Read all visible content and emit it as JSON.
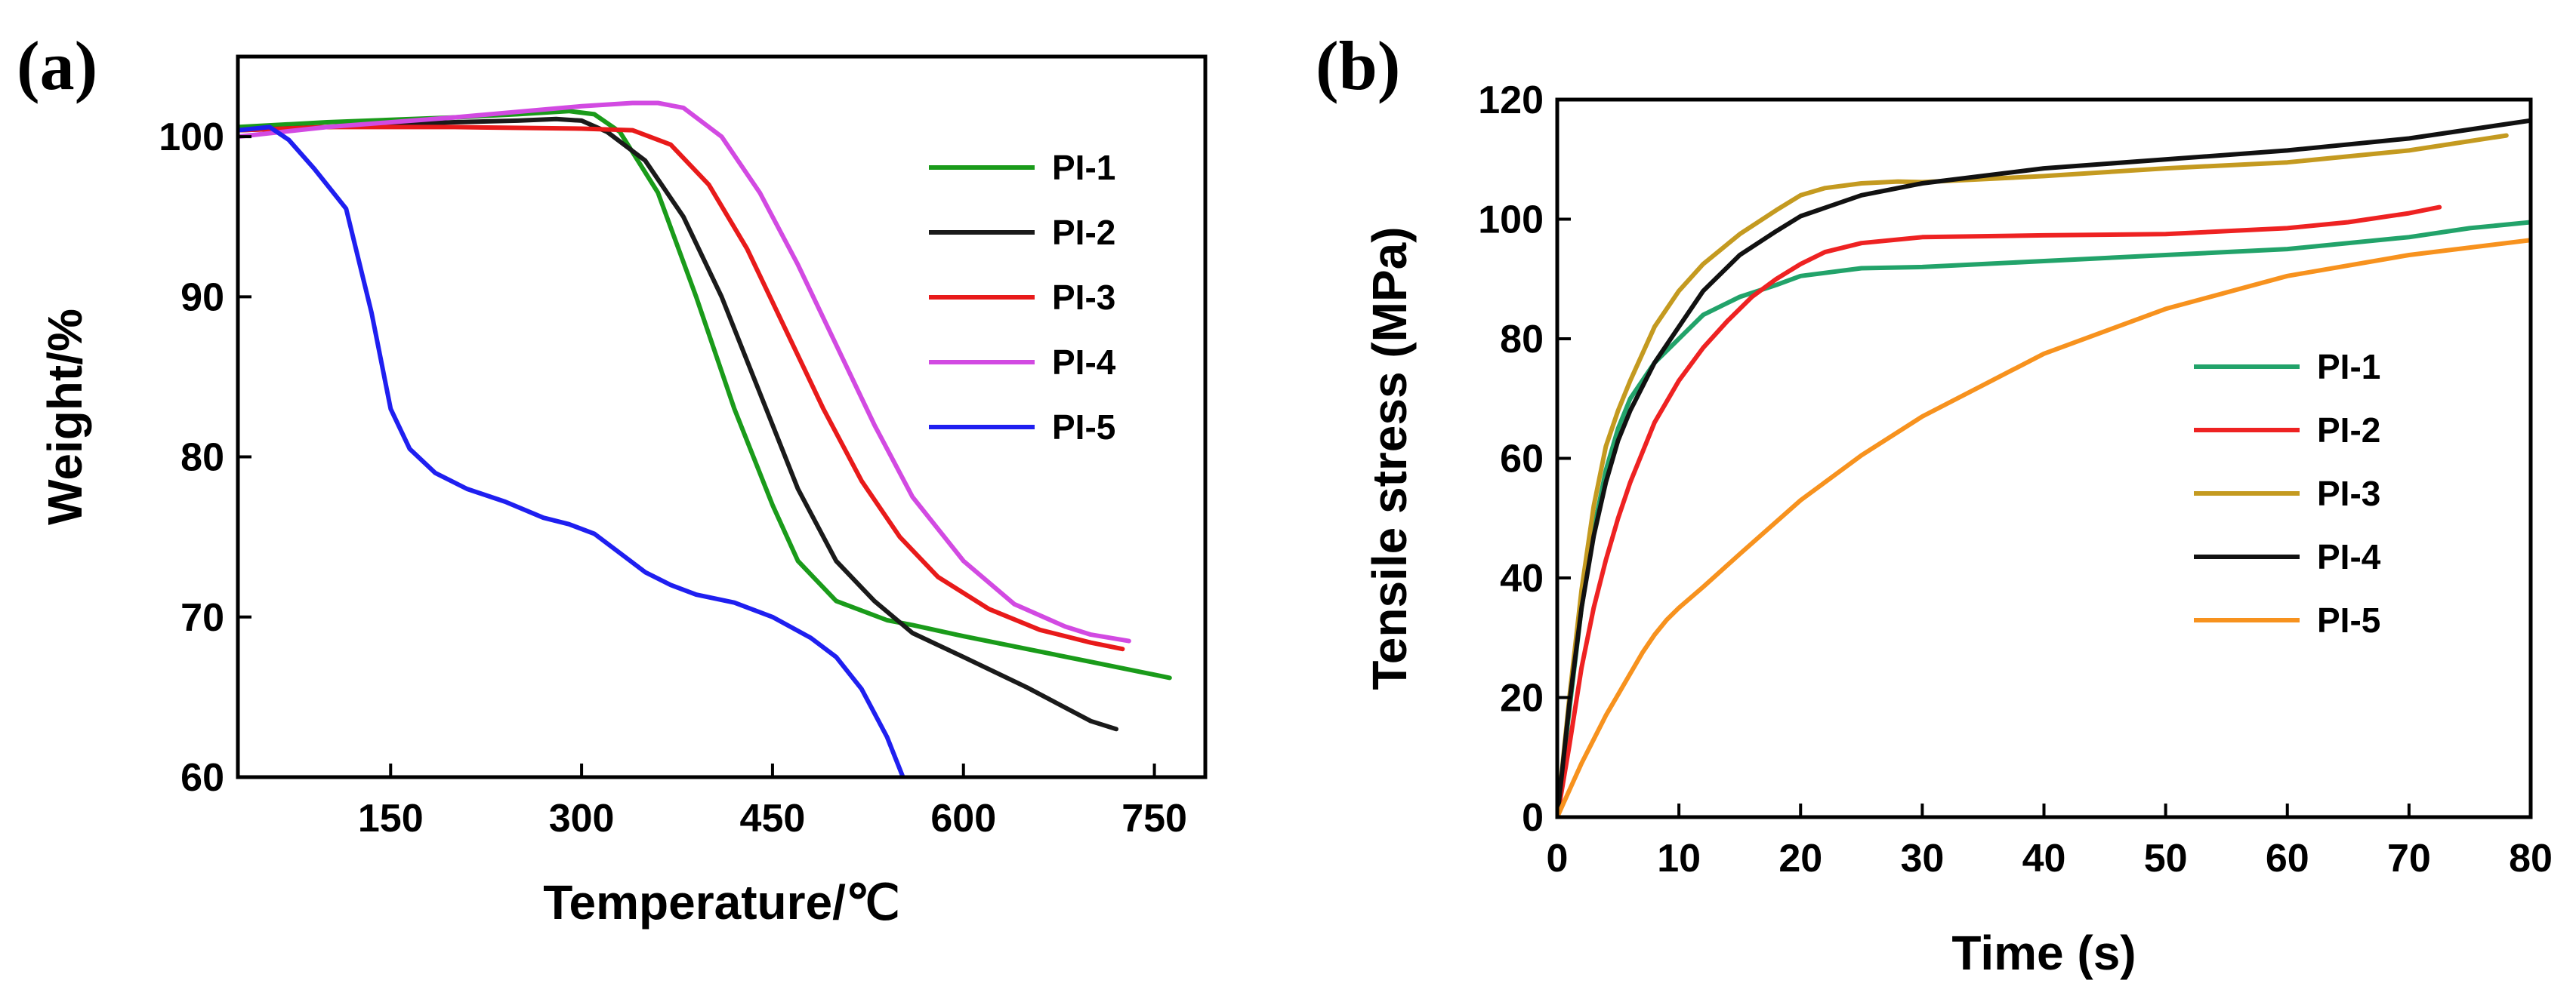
{
  "chart_data": [
    {
      "panel_label": "(a)",
      "type": "line",
      "xlabel": "Temperature/℃",
      "ylabel": "Weight/%",
      "xlim": [
        30,
        790
      ],
      "ylim": [
        60,
        105
      ],
      "xticks": [
        150,
        300,
        450,
        600,
        750
      ],
      "yticks": [
        60,
        70,
        80,
        90,
        100
      ],
      "legend_position": "right",
      "series": [
        {
          "name": "PI-1",
          "color": "#1a9b1a",
          "x": [
            30,
            100,
            200,
            250,
            290,
            310,
            330,
            360,
            390,
            420,
            450,
            470,
            500,
            540,
            560,
            600,
            650,
            700,
            762
          ],
          "y": [
            100.6,
            100.9,
            101.2,
            101.4,
            101.6,
            101.4,
            100.3,
            96.5,
            90,
            83,
            77,
            73.5,
            71,
            69.8,
            69.5,
            68.8,
            68,
            67.2,
            66.2
          ]
        },
        {
          "name": "PI-2",
          "color": "#1a1a1a",
          "x": [
            30,
            100,
            200,
            250,
            280,
            300,
            320,
            350,
            380,
            410,
            440,
            470,
            500,
            530,
            560,
            600,
            650,
            700,
            720
          ],
          "y": [
            100.4,
            100.6,
            100.9,
            101,
            101.1,
            101,
            100.3,
            98.5,
            95,
            90,
            84,
            78,
            73.5,
            71,
            69,
            67.5,
            65.6,
            63.5,
            63
          ]
        },
        {
          "name": "PI-3",
          "color": "#e81a1a",
          "x": [
            30,
            100,
            200,
            300,
            340,
            370,
            400,
            430,
            460,
            490,
            520,
            550,
            580,
            620,
            660,
            700,
            725
          ],
          "y": [
            100.4,
            100.6,
            100.6,
            100.5,
            100.4,
            99.5,
            97,
            93,
            88,
            83,
            78.5,
            75,
            72.5,
            70.5,
            69.2,
            68.4,
            68
          ]
        },
        {
          "name": "PI-4",
          "color": "#d24ae2",
          "x": [
            30,
            100,
            200,
            300,
            340,
            360,
            380,
            410,
            440,
            470,
            500,
            530,
            560,
            600,
            640,
            680,
            700,
            730
          ],
          "y": [
            100,
            100.6,
            101.2,
            101.9,
            102.1,
            102.1,
            101.8,
            100,
            96.5,
            92,
            87,
            82,
            77.5,
            73.5,
            70.8,
            69.4,
            68.9,
            68.5
          ]
        },
        {
          "name": "PI-5",
          "color": "#1f1ff0",
          "x": [
            30,
            55,
            70,
            90,
            115,
            135,
            150,
            165,
            185,
            210,
            240,
            270,
            290,
            310,
            330,
            350,
            370,
            390,
            420,
            450,
            480,
            500,
            520,
            540,
            555
          ],
          "y": [
            100.4,
            100.6,
            99.8,
            98,
            95.5,
            89,
            83,
            80.5,
            79,
            78,
            77.2,
            76.2,
            75.8,
            75.2,
            74,
            72.8,
            72,
            71.4,
            70.9,
            70,
            68.7,
            67.5,
            65.5,
            62.5,
            59.5
          ]
        }
      ]
    },
    {
      "panel_label": "(b)",
      "type": "line",
      "xlabel": "Time (s)",
      "ylabel": "Tensile stress (MPa)",
      "xlim": [
        0,
        80
      ],
      "ylim": [
        0,
        120
      ],
      "xticks": [
        0,
        10,
        20,
        30,
        40,
        50,
        60,
        70,
        80
      ],
      "yticks": [
        0,
        20,
        40,
        60,
        80,
        100,
        120
      ],
      "legend_position": "lower-right",
      "series": [
        {
          "name": "PI-1",
          "color": "#22a36a",
          "x": [
            0,
            1,
            2,
            3,
            4,
            5,
            6,
            8,
            10,
            12,
            15,
            18,
            20,
            25,
            30,
            40,
            50,
            60,
            70,
            75,
            80
          ],
          "y": [
            0,
            18,
            35,
            48,
            58,
            65,
            70,
            76,
            80,
            84,
            87,
            89,
            90.5,
            91.8,
            92,
            93,
            94,
            95,
            97,
            98.5,
            99.5
          ]
        },
        {
          "name": "PI-2",
          "color": "#ee2222",
          "x": [
            0,
            1,
            2,
            3,
            4,
            5,
            6,
            8,
            10,
            12,
            14,
            16,
            18,
            20,
            22,
            25,
            30,
            40,
            50,
            60,
            65,
            70,
            72.5
          ],
          "y": [
            0,
            12,
            25,
            35,
            43,
            50,
            56,
            66,
            73,
            78.5,
            83,
            87,
            90,
            92.5,
            94.5,
            96,
            97,
            97.3,
            97.5,
            98.5,
            99.5,
            101,
            102
          ]
        },
        {
          "name": "PI-3",
          "color": "#c49a20",
          "x": [
            0,
            1,
            2,
            3,
            4,
            5,
            6,
            8,
            10,
            12,
            15,
            18,
            20,
            22,
            25,
            28,
            30,
            40,
            50,
            60,
            70,
            78
          ],
          "y": [
            0,
            20,
            38,
            52,
            62,
            68,
            73,
            82,
            88,
            92.5,
            97.5,
            101.5,
            104,
            105.2,
            106,
            106.3,
            106.2,
            107.2,
            108.5,
            109.5,
            111.5,
            114
          ]
        },
        {
          "name": "PI-4",
          "color": "#111111",
          "x": [
            0,
            1,
            2,
            3,
            4,
            5,
            6,
            8,
            10,
            12,
            15,
            18,
            20,
            25,
            30,
            40,
            50,
            60,
            70,
            75,
            80
          ],
          "y": [
            0,
            19,
            35,
            47,
            56,
            63,
            68,
            76,
            82,
            88,
            94,
            98,
            100.5,
            104,
            106,
            108.5,
            110,
            111.5,
            113.5,
            115,
            116.5
          ]
        },
        {
          "name": "PI-5",
          "color": "#f7921e",
          "x": [
            0,
            1,
            2,
            3,
            4,
            5,
            6,
            7,
            8,
            9,
            10,
            12,
            15,
            20,
            25,
            30,
            40,
            50,
            60,
            70,
            80
          ],
          "y": [
            0,
            4.5,
            9,
            13,
            17,
            20.5,
            24,
            27.5,
            30.5,
            33,
            35,
            38.5,
            44,
            53,
            60.5,
            67,
            77.5,
            85,
            90.5,
            94,
            96.5
          ]
        }
      ]
    }
  ]
}
